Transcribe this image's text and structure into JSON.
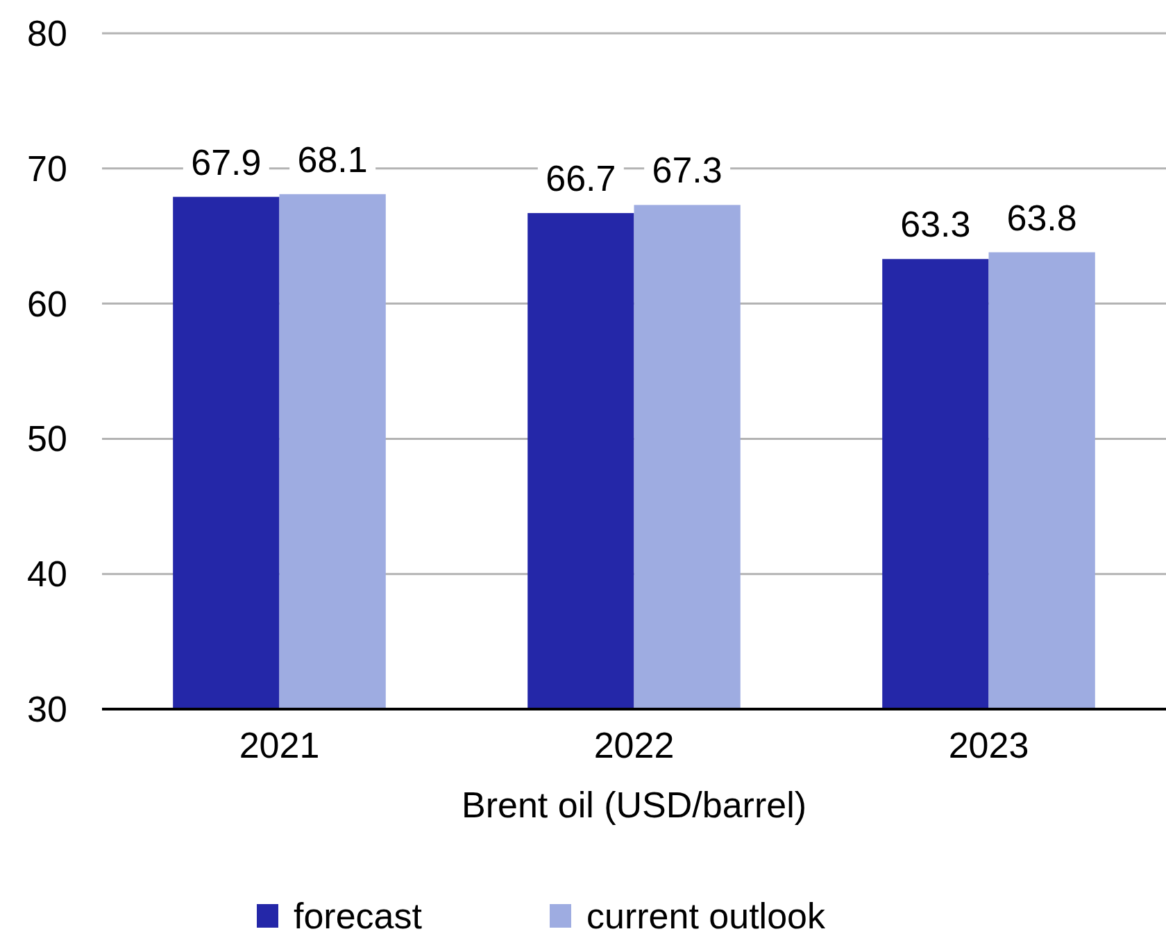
{
  "chart_data": {
    "type": "bar",
    "xlabel": "Brent oil (USD/barrel)",
    "categories": [
      "2021",
      "2022",
      "2023"
    ],
    "series": [
      {
        "name": "forecast",
        "color": "#2427a8",
        "values": [
          67.9,
          66.7,
          63.3
        ]
      },
      {
        "name": "current outlook",
        "color": "#9eace1",
        "values": [
          68.1,
          67.3,
          63.8
        ]
      }
    ],
    "ylim": [
      30,
      80
    ],
    "yticks": [
      30,
      40,
      50,
      60,
      70,
      80
    ],
    "grid": "y",
    "legend": "bottom",
    "data_labels": true
  }
}
